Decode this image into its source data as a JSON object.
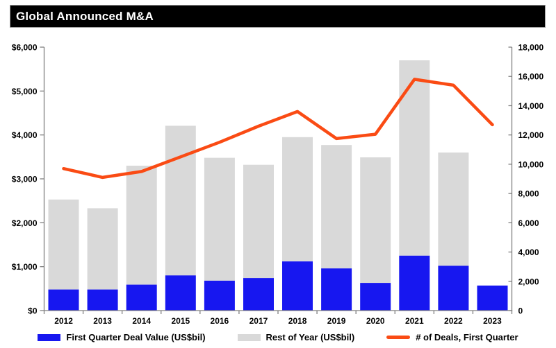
{
  "title": "Global Announced M&A",
  "colors": {
    "first_quarter_bar": "#1717F0",
    "rest_of_year_bar": "#D9D9D9",
    "deals_line": "#FA4B14",
    "title_bar_bg": "#000000",
    "title_text": "#FFFFFF",
    "axis_line": "#7F7F7F",
    "label_text": "#000000",
    "background": "#FFFFFF"
  },
  "chart_data": {
    "type": "combo-stacked-bar-line",
    "title": "Global Announced M&A",
    "grid": false,
    "legend_position": "bottom",
    "categories": [
      "2012",
      "2013",
      "2014",
      "2015",
      "2016",
      "2017",
      "2018",
      "2019",
      "2020",
      "2021",
      "2022",
      "2023"
    ],
    "series": [
      {
        "name": "First Quarter Deal Value (US$bil)",
        "type": "bar",
        "stack": true,
        "axis": "left",
        "values": [
          480,
          480,
          590,
          800,
          680,
          740,
          1120,
          960,
          630,
          1250,
          1020,
          570
        ]
      },
      {
        "name": "Rest of Year (US$bil)",
        "type": "bar",
        "stack": true,
        "axis": "left",
        "values": [
          2050,
          1850,
          2710,
          3410,
          2800,
          2580,
          2830,
          2810,
          2860,
          4450,
          2580,
          0
        ]
      },
      {
        "name": "# of Deals, First Quarter",
        "type": "line",
        "axis": "right",
        "values": [
          9700,
          9100,
          9500,
          10500,
          11500,
          12600,
          13600,
          11750,
          12050,
          15800,
          15400,
          12700
        ]
      }
    ],
    "left_axis": {
      "ylim": [
        0,
        6000
      ],
      "ticks": [
        {
          "value": 0,
          "label": "$0"
        },
        {
          "value": 1000,
          "label": "$1,000"
        },
        {
          "value": 2000,
          "label": "$2,000"
        },
        {
          "value": 3000,
          "label": "$3,000"
        },
        {
          "value": 4000,
          "label": "$4,000"
        },
        {
          "value": 5000,
          "label": "$5,000"
        },
        {
          "value": 6000,
          "label": "$6,000"
        }
      ]
    },
    "right_axis": {
      "ylim": [
        0,
        18000
      ],
      "ticks": [
        {
          "value": 0,
          "label": "0"
        },
        {
          "value": 2000,
          "label": "2,000"
        },
        {
          "value": 4000,
          "label": "4,000"
        },
        {
          "value": 6000,
          "label": "6,000"
        },
        {
          "value": 8000,
          "label": "8,000"
        },
        {
          "value": 10000,
          "label": "10,000"
        },
        {
          "value": 12000,
          "label": "12,000"
        },
        {
          "value": 14000,
          "label": "14,000"
        },
        {
          "value": 16000,
          "label": "16,000"
        },
        {
          "value": 18000,
          "label": "18,000"
        }
      ]
    }
  }
}
